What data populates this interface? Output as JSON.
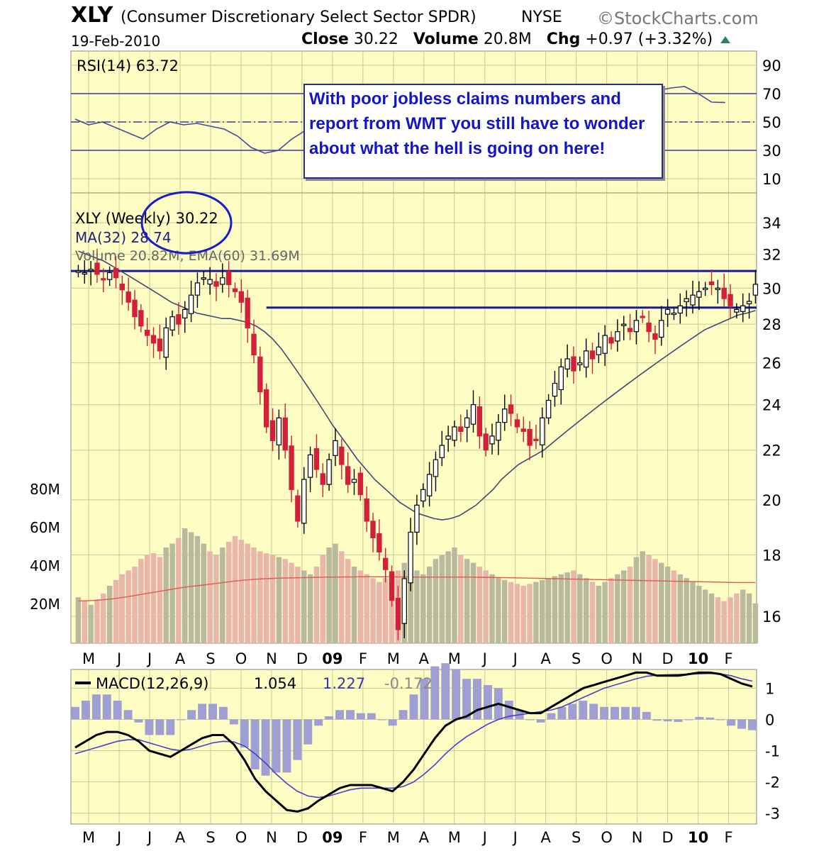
{
  "header": {
    "ticker": "XLY",
    "name": "(Consumer Discretionary Select Sector SPDR)",
    "exchange": "NYSE",
    "brand": "©StockCharts.com",
    "date": "19-Feb-2010",
    "close_label": "Close",
    "close_value": "30.22",
    "volume_label": "Volume",
    "volume_value": "20.8M",
    "chg_label": "Chg",
    "chg_value": "+0.97 (+3.32%)"
  },
  "annotation": "With poor jobless claims numbers and report from WMT you still have to wonder about what the hell is going on here!",
  "colors": {
    "panel_bg": "#fdfdc4",
    "grid": "#c9c99a",
    "up_candle": "#000000",
    "down_candle": "#d3203a",
    "ma_line": "#404878",
    "volume_up": "#b9b9a0",
    "volume_down": "#eab5ab",
    "volume_ema": "#e05a50",
    "support_line": "#1a1a99",
    "circle": "#1a1ad0",
    "macd_line": "#000000",
    "signal_line": "#4a3fc8",
    "histogram": "#9f9fd4"
  },
  "chart_data": [
    {
      "type": "line",
      "panel": "rsi",
      "legend": "RSI(14) 63.72",
      "y_ticks": [
        90,
        70,
        50,
        30,
        10
      ],
      "reference_lines": [
        70,
        50,
        30
      ],
      "ylim": [
        0,
        100
      ],
      "x": [
        0,
        2,
        4,
        6,
        8,
        10,
        12,
        14,
        16,
        18,
        20,
        22,
        24,
        26,
        28,
        30,
        32,
        34,
        36,
        38,
        40,
        42,
        44,
        46,
        48,
        50,
        52,
        54,
        56,
        58,
        60,
        62,
        64,
        66,
        68,
        70,
        72,
        74,
        76,
        78,
        80,
        82,
        84,
        86,
        88,
        90,
        92,
        94,
        96
      ],
      "values": [
        52,
        48,
        50,
        46,
        42,
        38,
        45,
        50,
        48,
        49,
        47,
        45,
        40,
        32,
        28,
        30,
        38,
        44,
        50,
        45,
        48,
        46,
        49,
        50,
        52,
        53,
        55,
        54,
        56,
        58,
        60,
        62,
        64,
        66,
        65,
        67,
        68,
        66,
        70,
        72,
        71,
        74,
        73,
        72,
        74,
        75,
        70,
        64,
        63.72
      ]
    },
    {
      "type": "candlestick",
      "panel": "price",
      "legend_price": "XLY (Weekly) 30.22",
      "legend_ma": "MA(32) 28.74",
      "legend_volume": "Volume 20.82M, EMA(60) 31.69M",
      "y_ticks": [
        34,
        32,
        30,
        28,
        26,
        24,
        22,
        20,
        18,
        16
      ],
      "y_scale": "log",
      "ylim": [
        15.2,
        36
      ],
      "x_tick_labels": [
        "M",
        "J",
        "J",
        "A",
        "S",
        "O",
        "N",
        "D",
        "09",
        "F",
        "M",
        "A",
        "M",
        "J",
        "J",
        "A",
        "S",
        "O",
        "N",
        "D",
        "10",
        "F"
      ],
      "x_tick_positions": [
        2,
        6.5,
        11,
        15.5,
        20,
        24.5,
        29,
        33.5,
        38,
        42.5,
        47,
        51.5,
        56,
        60.5,
        65,
        69.5,
        74,
        78.5,
        83,
        87.5,
        92,
        96.5
      ],
      "horizontal_lines": [
        31.0,
        28.9
      ],
      "close": [
        31.0,
        30.9,
        31.1,
        30.8,
        30.5,
        30.9,
        30.6,
        29.9,
        29.2,
        28.4,
        27.9,
        27.4,
        27.0,
        26.6,
        27.8,
        28.4,
        28.0,
        28.8,
        29.6,
        30.3,
        30.6,
        30.5,
        30.1,
        30.6,
        30.2,
        29.8,
        29.2,
        27.8,
        26.4,
        24.6,
        23.0,
        22.4,
        23.4,
        22.0,
        20.4,
        19.2,
        20.8,
        21.8,
        21.2,
        20.6,
        21.6,
        22.4,
        21.4,
        20.6,
        20.8,
        20.2,
        19.2,
        18.6,
        18.1,
        17.5,
        16.5,
        15.6,
        17.2,
        18.8,
        19.8,
        20.4,
        21.0,
        21.6,
        22.2,
        22.6,
        23.0,
        22.8,
        23.4,
        24.0,
        22.6,
        22.0,
        22.6,
        23.2,
        23.8,
        23.6,
        23.0,
        22.8,
        22.2,
        22.4,
        23.4,
        24.2,
        25.0,
        25.8,
        26.2,
        25.6,
        26.0,
        26.6,
        26.2,
        26.8,
        27.4,
        27.0,
        27.6,
        28.0,
        27.6,
        28.2,
        28.4,
        27.6,
        27.2,
        28.2,
        28.8,
        28.6,
        29.0,
        29.4,
        29.6,
        29.8,
        30.0,
        30.2,
        30.0,
        29.4,
        29.0,
        28.8,
        29.0,
        29.25,
        30.22
      ],
      "ma": [
        32.2,
        32.0,
        31.8,
        31.6,
        31.3,
        31.0,
        30.7,
        30.4,
        30.1,
        29.8,
        29.5,
        29.2,
        29.0,
        28.8,
        28.6,
        28.5,
        28.4,
        28.3,
        28.3,
        28.2,
        28.1,
        27.9,
        27.6,
        27.2,
        26.7,
        26.1,
        25.5,
        24.9,
        24.3,
        23.7,
        23.1,
        22.6,
        22.1,
        21.6,
        21.2,
        20.8,
        20.5,
        20.2,
        19.9,
        19.7,
        19.5,
        19.4,
        19.3,
        19.25,
        19.3,
        19.4,
        19.6,
        19.8,
        20.1,
        20.4,
        20.8,
        21.1,
        21.4,
        21.6,
        21.8,
        22.0,
        22.3,
        22.6,
        22.9,
        23.2,
        23.5,
        23.8,
        24.1,
        24.4,
        24.7,
        25.0,
        25.3,
        25.6,
        25.9,
        26.2,
        26.5,
        26.8,
        27.1,
        27.4,
        27.7,
        27.9,
        28.1,
        28.3,
        28.5,
        28.6,
        28.74
      ]
    },
    {
      "type": "bar",
      "panel": "volume",
      "y_tick_labels": [
        "80M",
        "60M",
        "40M",
        "20M"
      ],
      "y_tick_values": [
        80,
        60,
        40,
        20
      ],
      "ylim": [
        0,
        120
      ],
      "values": [
        24,
        22,
        20,
        23,
        26,
        30,
        33,
        36,
        38,
        40,
        44,
        46,
        47,
        45,
        50,
        52,
        55,
        60,
        58,
        56,
        52,
        48,
        46,
        50,
        53,
        56,
        54,
        52,
        50,
        48,
        47,
        46,
        45,
        44,
        42,
        40,
        38,
        36,
        40,
        46,
        50,
        52,
        48,
        44,
        40,
        38,
        36,
        34,
        32,
        34,
        36,
        38,
        42,
        40,
        38,
        36,
        40,
        44,
        46,
        48,
        50,
        46,
        44,
        42,
        40,
        38,
        36,
        34,
        33,
        32,
        31,
        30,
        31,
        32,
        33,
        34,
        35,
        36,
        37,
        38,
        36,
        34,
        32,
        30,
        32,
        34,
        36,
        38,
        40,
        45,
        48,
        46,
        44,
        42,
        40,
        38,
        36,
        34,
        32,
        30,
        28,
        26,
        24,
        22,
        24,
        26,
        28,
        26,
        20.82
      ],
      "ema": [
        22,
        22.2,
        22.4,
        22.8,
        23.3,
        24,
        24.8,
        25.6,
        26.4,
        27.2,
        28,
        28.8,
        29.5,
        30,
        30.6,
        31.2,
        31.8,
        32.4,
        32.9,
        33.3,
        33.6,
        33.8,
        34,
        34.1,
        34.2,
        34.3,
        34.4,
        34.5,
        34.5,
        34.6,
        34.6,
        34.7,
        34.7,
        34.7,
        34.7,
        34.6,
        34.6,
        34.5,
        34.5,
        34.5,
        34.5,
        34.5,
        34.5,
        34.5,
        34.4,
        34.4,
        34.3,
        34.2,
        34.1,
        34,
        33.9,
        33.8,
        33.7,
        33.6,
        33.5,
        33.4,
        33.3,
        33.2,
        33.1,
        33,
        32.9,
        32.8,
        32.7,
        32.6,
        32.5,
        32.4,
        32.3,
        32.2,
        32.1,
        32,
        31.9,
        31.8,
        31.7,
        31.7,
        31.69
      ]
    },
    {
      "type": "line",
      "panel": "macd",
      "legend": "MACD(12,26,9)",
      "legend_macd": "1.054",
      "legend_signal": "1.227",
      "legend_hist": "-0.172",
      "y_ticks": [
        1,
        0,
        -1,
        -2,
        -3
      ],
      "ylim": [
        -3.35,
        1.6
      ],
      "macd": [
        -0.9,
        -0.7,
        -0.5,
        -0.4,
        -0.4,
        -0.5,
        -0.7,
        -1,
        -1.1,
        -1.2,
        -1.0,
        -0.8,
        -0.6,
        -0.5,
        -0.5,
        -0.8,
        -1.3,
        -1.9,
        -2.3,
        -2.6,
        -2.9,
        -2.95,
        -2.85,
        -2.6,
        -2.4,
        -2.2,
        -2.1,
        -2.1,
        -2.1,
        -2.2,
        -2.3,
        -2.0,
        -1.6,
        -1.1,
        -0.6,
        -0.2,
        0,
        0.1,
        0.3,
        0.4,
        0.5,
        0.4,
        0.3,
        0.2,
        0.2,
        0.4,
        0.6,
        0.8,
        1.0,
        1.1,
        1.2,
        1.3,
        1.4,
        1.5,
        1.5,
        1.4,
        1.4,
        1.4,
        1.45,
        1.5,
        1.5,
        1.45,
        1.3,
        1.15,
        1.054
      ],
      "signal": [
        -1.1,
        -1.0,
        -0.9,
        -0.8,
        -0.7,
        -0.65,
        -0.65,
        -0.75,
        -0.85,
        -0.95,
        -1.0,
        -0.95,
        -0.85,
        -0.75,
        -0.7,
        -0.72,
        -0.85,
        -1.1,
        -1.4,
        -1.75,
        -2.05,
        -2.3,
        -2.45,
        -2.5,
        -2.45,
        -2.35,
        -2.25,
        -2.2,
        -2.2,
        -2.2,
        -2.2,
        -2.15,
        -2.0,
        -1.75,
        -1.45,
        -1.1,
        -0.8,
        -0.55,
        -0.35,
        -0.15,
        0,
        0.1,
        0.15,
        0.2,
        0.25,
        0.3,
        0.4,
        0.55,
        0.7,
        0.85,
        1.0,
        1.1,
        1.2,
        1.3,
        1.38,
        1.42,
        1.43,
        1.44,
        1.45,
        1.46,
        1.47,
        1.46,
        1.4,
        1.3,
        1.227
      ]
    }
  ]
}
